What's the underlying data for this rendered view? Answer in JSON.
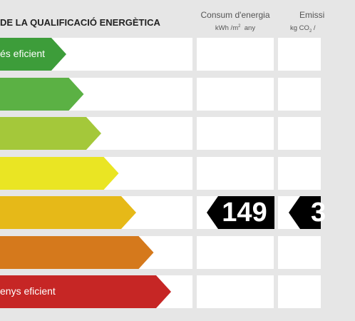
{
  "header": {
    "title": "DE LA QUALIFICACIÓ ENERGÈTICA",
    "energy_col": {
      "title": "Consum d'energia",
      "unit_prefix": "kWh /m",
      "unit_exp": "2",
      "unit_suffix": "  any"
    },
    "emissions_col": {
      "title": "Emissi",
      "unit_prefix": "kg CO",
      "unit_sub": "2",
      "unit_suffix": " /"
    }
  },
  "bands": [
    {
      "color": "#3d9d3a",
      "label": "és eficient"
    },
    {
      "color": "#5bb144",
      "label": ""
    },
    {
      "color": "#a4c83a",
      "label": ""
    },
    {
      "color": "#eae523",
      "label": ""
    },
    {
      "color": "#e6b918",
      "label": ""
    },
    {
      "color": "#d5791c",
      "label": ""
    },
    {
      "color": "#c62625",
      "label": "enys eficient"
    }
  ],
  "rating": {
    "energy_value": "149",
    "emissions_value": "3",
    "band_index": 4
  }
}
